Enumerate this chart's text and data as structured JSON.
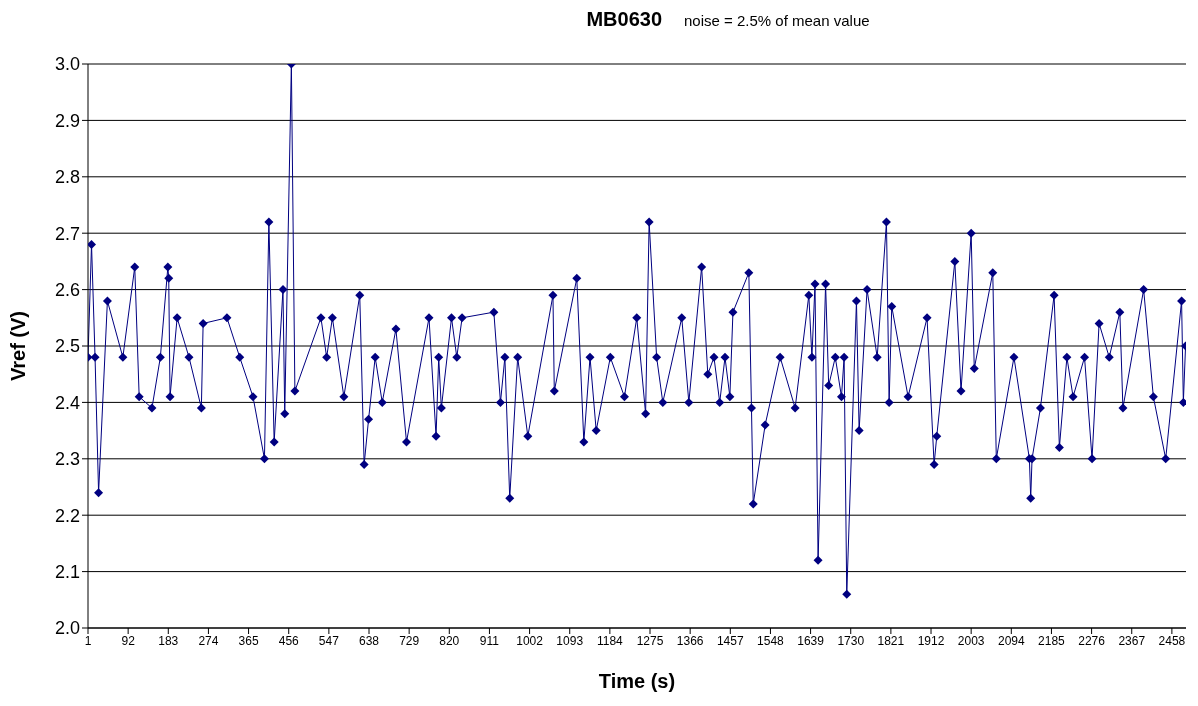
{
  "chart_data": {
    "type": "line",
    "title": "MB0630",
    "subtitle": "noise = 2.5% of mean value",
    "xlabel": "Time (s)",
    "ylabel": "Vref (V)",
    "xlim": [
      1,
      2490
    ],
    "xticks": [
      1,
      92,
      183,
      274,
      365,
      456,
      547,
      638,
      729,
      820,
      911,
      1002,
      1093,
      1184,
      1275,
      1366,
      1457,
      1548,
      1639,
      1730,
      1821,
      1912,
      2003,
      2094,
      2185,
      2276,
      2367,
      2458
    ],
    "ylim": [
      2.0,
      3.0
    ],
    "yticks": [
      {
        "value": 2.0,
        "label": "2.0"
      },
      2.1,
      2.2,
      2.3,
      2.4,
      2.5,
      2.6,
      2.7,
      2.8,
      2.9,
      {
        "value": 3.0,
        "label": "3.0"
      }
    ],
    "grid": "y",
    "marker": "diamond",
    "line_style": "solid",
    "series": [
      {
        "color": "#000080",
        "x": [
          1,
          9,
          17,
          25,
          45,
          80,
          107,
          117,
          146,
          165,
          182,
          184,
          187,
          203,
          230,
          258,
          262,
          316,
          345,
          375,
          401,
          411,
          423,
          443,
          447,
          462,
          470,
          529,
          542,
          555,
          581,
          617,
          627,
          637,
          652,
          668,
          699,
          723,
          774,
          790,
          796,
          802,
          825,
          837,
          849,
          921,
          936,
          946,
          957,
          975,
          998,
          1055,
          1058,
          1109,
          1125,
          1139,
          1153,
          1185,
          1217,
          1245,
          1265,
          1273,
          1290,
          1304,
          1347,
          1363,
          1392,
          1406,
          1420,
          1433,
          1445,
          1456,
          1463,
          1499,
          1505,
          1509,
          1536,
          1570,
          1604,
          1635,
          1642,
          1649,
          1656,
          1673,
          1680,
          1695,
          1709,
          1715,
          1721,
          1743,
          1749,
          1767,
          1790,
          1811,
          1817,
          1823,
          1860,
          1903,
          1919,
          1925,
          1966,
          1980,
          2003,
          2010,
          2052,
          2060,
          2100,
          2135,
          2138,
          2141,
          2160,
          2191,
          2203,
          2220,
          2234,
          2260,
          2277,
          2293,
          2316,
          2340,
          2347,
          2394,
          2416,
          2444,
          2480,
          2484,
          2489
        ],
        "values": [
          2.48,
          2.68,
          2.48,
          2.24,
          2.58,
          2.48,
          2.64,
          2.41,
          2.39,
          2.48,
          2.64,
          2.62,
          2.41,
          2.55,
          2.48,
          2.39,
          2.54,
          2.55,
          2.48,
          2.41,
          2.3,
          2.72,
          2.33,
          2.6,
          2.38,
          3.0,
          2.42,
          2.55,
          2.48,
          2.55,
          2.41,
          2.59,
          2.29,
          2.37,
          2.48,
          2.4,
          2.53,
          2.33,
          2.55,
          2.34,
          2.48,
          2.39,
          2.55,
          2.48,
          2.55,
          2.56,
          2.4,
          2.48,
          2.23,
          2.48,
          2.34,
          2.59,
          2.42,
          2.62,
          2.33,
          2.48,
          2.35,
          2.48,
          2.41,
          2.55,
          2.38,
          2.72,
          2.48,
          2.4,
          2.55,
          2.4,
          2.64,
          2.45,
          2.48,
          2.4,
          2.48,
          2.41,
          2.56,
          2.63,
          2.39,
          2.22,
          2.36,
          2.48,
          2.39,
          2.59,
          2.48,
          2.61,
          2.12,
          2.61,
          2.43,
          2.48,
          2.41,
          2.48,
          2.06,
          2.58,
          2.35,
          2.6,
          2.48,
          2.72,
          2.4,
          2.57,
          2.41,
          2.55,
          2.29,
          2.34,
          2.65,
          2.42,
          2.7,
          2.46,
          2.63,
          2.3,
          2.48,
          2.3,
          2.23,
          2.3,
          2.39,
          2.59,
          2.32,
          2.48,
          2.41,
          2.48,
          2.3,
          2.54,
          2.48,
          2.56,
          2.39,
          2.6,
          2.41,
          2.3,
          2.58,
          2.4,
          2.5
        ]
      }
    ]
  }
}
